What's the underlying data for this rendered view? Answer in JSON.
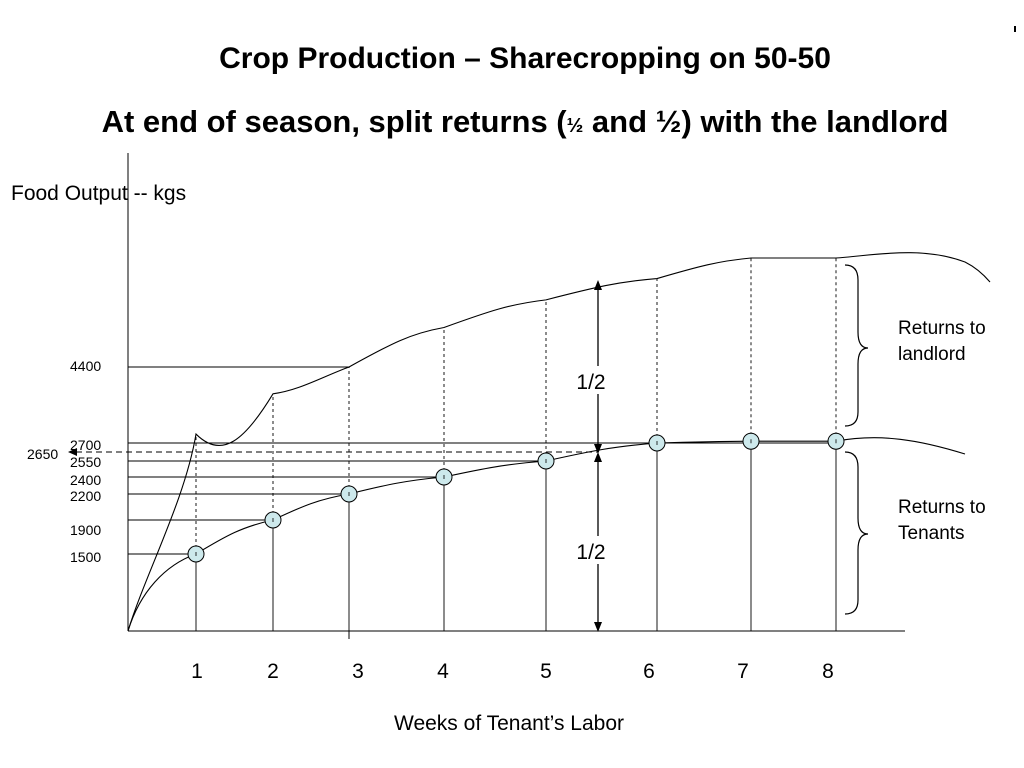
{
  "title": "Crop Production – Sharecropping on 50-50",
  "subtitle": {
    "before": "At end of season, split returns (",
    "half_small": "½",
    "middle": " and ½) with the landlord"
  },
  "chart_data": {
    "type": "line",
    "title": "Crop Production – Sharecropping on 50-50",
    "xlabel": "Weeks of Tenant’s Labor",
    "ylabel": "Food Output -- kgs",
    "x": [
      1,
      2,
      3,
      4,
      5,
      6,
      7,
      8
    ],
    "x_tick_labels": [
      "1",
      "2",
      "3",
      "4",
      "5",
      "6",
      "7",
      "8"
    ],
    "y_tick_labels": [
      "4400",
      "2700",
      "2650",
      "2550",
      "2400",
      "2200",
      "1900",
      "1500"
    ],
    "series": [
      {
        "name": "",
        "values": [
          2900,
          3800,
          4400,
          4900,
          5250,
          5520,
          5780,
          5780
        ]
      },
      {
        "name": "",
        "values": [
          1500,
          1900,
          2200,
          2400,
          2550,
          2700,
          2740,
          2740
        ]
      }
    ],
    "xlim": [
      0,
      9
    ],
    "ylim": [
      0,
      6200
    ],
    "grid": false,
    "legend": "none",
    "annotations": {
      "upper_half": "1/2",
      "lower_half": "1/2",
      "brace_upper": "Returns to\nlandlord",
      "brace_lower": "Returns to\nTenants"
    },
    "colors": {
      "marker_fill": "#cde9ec",
      "line": "#000000"
    }
  }
}
